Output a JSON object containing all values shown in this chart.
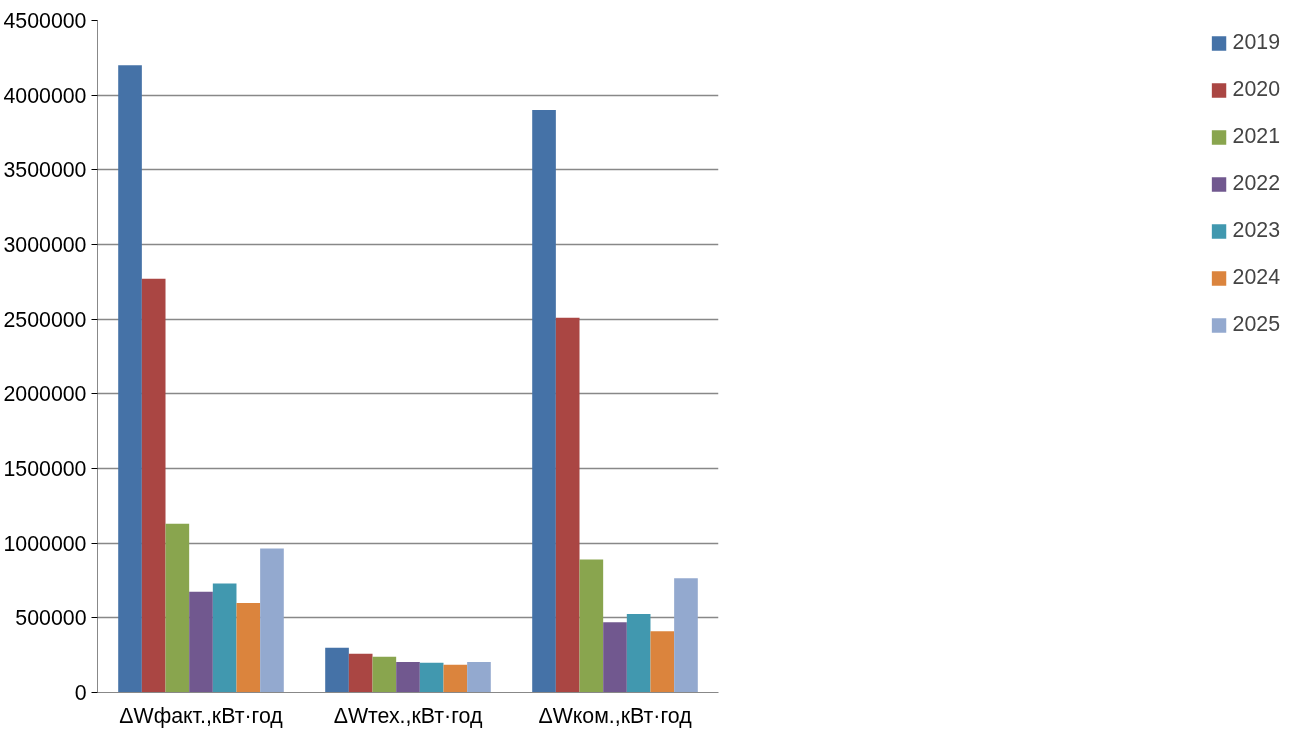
{
  "chart_data": {
    "type": "bar",
    "categories": [
      "ΔWфакт.,кВт·год",
      "ΔWтех.,кВт·год",
      "ΔWком.,кВт·год"
    ],
    "series": [
      {
        "name": "2019",
        "color": "#4572a7",
        "values": [
          4200000,
          300000,
          3900000
        ]
      },
      {
        "name": "2020",
        "color": "#aa4643",
        "values": [
          2770000,
          260000,
          2510000
        ]
      },
      {
        "name": "2021",
        "color": "#89a54e",
        "values": [
          1130000,
          240000,
          890000
        ]
      },
      {
        "name": "2022",
        "color": "#71588f",
        "values": [
          675000,
          205000,
          470000
        ]
      },
      {
        "name": "2023",
        "color": "#4198af",
        "values": [
          730000,
          200000,
          525000
        ]
      },
      {
        "name": "2024",
        "color": "#db843d",
        "values": [
          600000,
          185000,
          410000
        ]
      },
      {
        "name": "2025",
        "color": "#93a9cf",
        "values": [
          965000,
          205000,
          765000
        ]
      }
    ],
    "ylim": [
      0,
      4500000
    ],
    "yticks": [
      0,
      500000,
      1000000,
      1500000,
      2000000,
      2500000,
      3000000,
      3500000,
      4000000,
      4500000
    ],
    "grid": "y",
    "legend": "right"
  }
}
